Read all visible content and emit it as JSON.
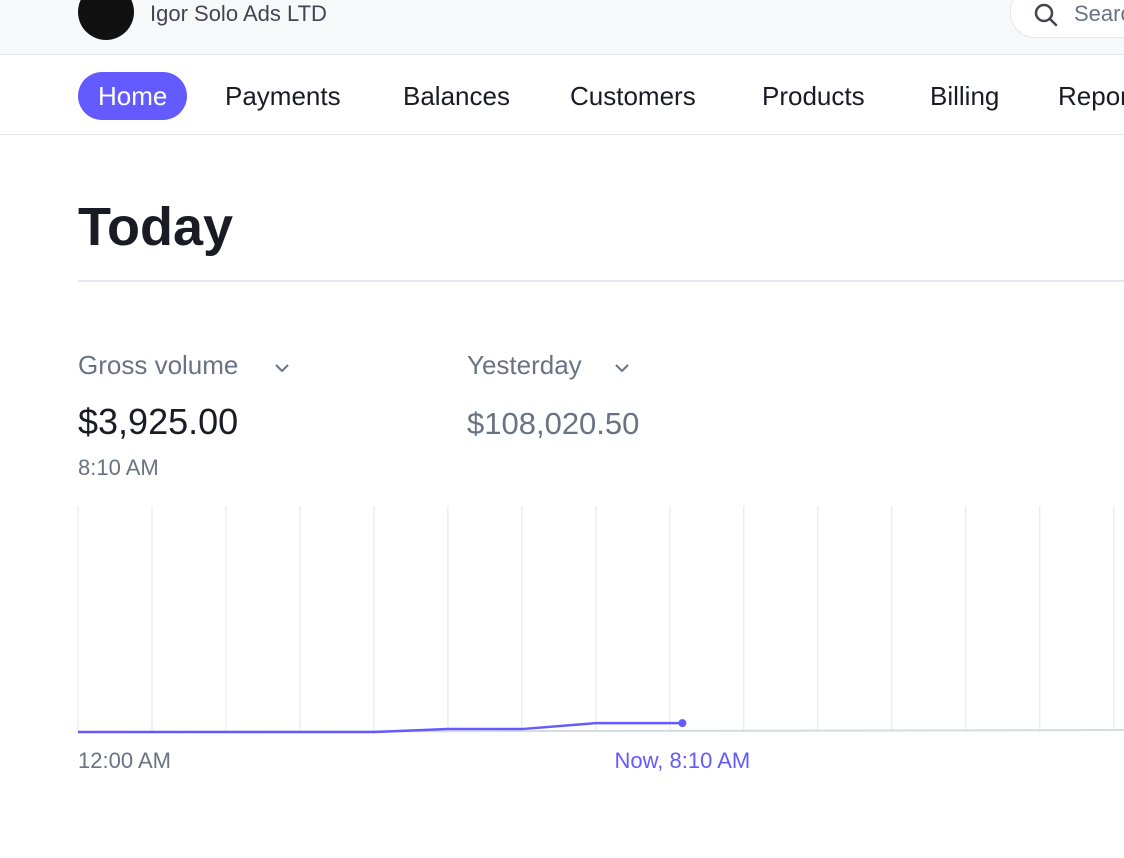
{
  "header": {
    "account": "Igor Solo Ads LTD",
    "search": "Search"
  },
  "nav": [
    "Home",
    "Payments",
    "Balances",
    "Customers",
    "Products",
    "Billing",
    "Reports"
  ],
  "active_nav": "Home",
  "page_title": "Today",
  "metrics": [
    {
      "label": "Gross volume",
      "value": "$3,925.00",
      "time": "8:10 AM"
    },
    {
      "label": "Yesterday",
      "value": "$108,020.50"
    }
  ],
  "chart_data": {
    "type": "line",
    "x": [
      0,
      1,
      2,
      3,
      4,
      5,
      6,
      7,
      8.17
    ],
    "values": [
      0,
      0,
      0,
      0,
      0,
      1300,
      1300,
      3925,
      3925
    ],
    "color": "#635bff",
    "xlim": [
      0,
      14.14
    ],
    "xticks": [
      0,
      1,
      2,
      3,
      4,
      5,
      6,
      7,
      8,
      9,
      10,
      11,
      12,
      13,
      14
    ],
    "ylim": [
      0,
      100000
    ],
    "grid": true,
    "start_label": "12:00 AM",
    "now_label": "Now, 8:10 AM"
  }
}
